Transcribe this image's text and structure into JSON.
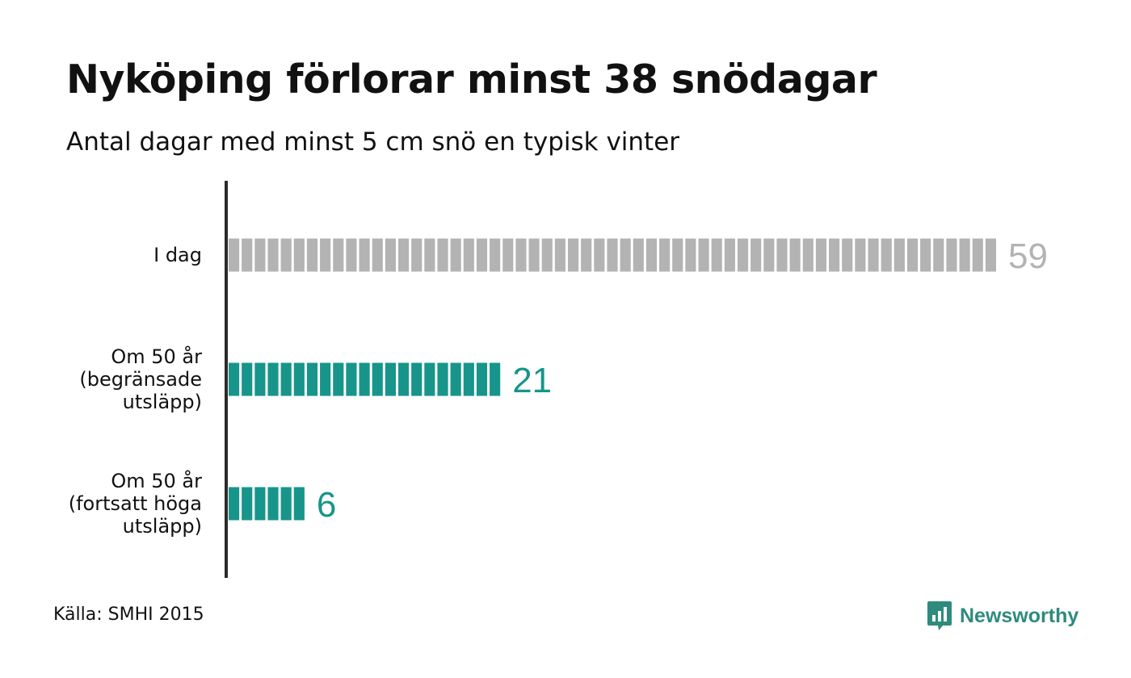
{
  "title": "Nyköping förlorar minst 38 snödagar",
  "subtitle": "Antal dagar med minst 5 cm snö en typisk vinter",
  "source": "Källa: SMHI 2015",
  "logo_text": "Newsworthy",
  "colors": {
    "current": "#b3b3b3",
    "future": "#17958a",
    "axis": "#2b2b2b",
    "logo": "#2e8b7d"
  },
  "chart_data": {
    "type": "bar",
    "orientation": "horizontal",
    "title": "Nyköping förlorar minst 38 snödagar",
    "subtitle": "Antal dagar med minst 5 cm snö en typisk vinter",
    "categories": [
      [
        "I dag"
      ],
      [
        "Om 50 år",
        "(begränsade",
        "utsläpp)"
      ],
      [
        "Om 50 år",
        "(fortsatt höga",
        "utsläpp)"
      ]
    ],
    "values": [
      59,
      21,
      6
    ],
    "value_labels": [
      "59",
      "21",
      "6"
    ],
    "bar_colors": [
      "#b3b3b3",
      "#17958a",
      "#17958a"
    ],
    "xlim": [
      0,
      59
    ],
    "grid": false,
    "bar_style": "segmented, one block per day"
  }
}
